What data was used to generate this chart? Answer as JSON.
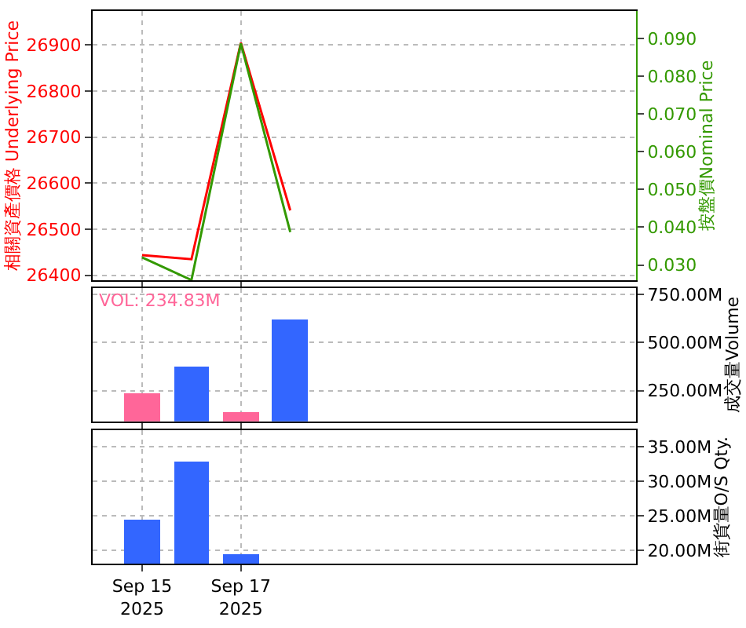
{
  "chart_data": [
    {
      "type": "line",
      "ylabel": "相關資產價格 Underlying Price",
      "y2label": "按盤價Nominal Price",
      "xlim": [
        "2025-09-14",
        "2025-09-25"
      ],
      "xticks": [
        {
          "value": "2025-09-15",
          "label": null
        },
        {
          "value": "2025-09-17",
          "label": null
        }
      ],
      "ylim": [
        26389,
        26974
      ],
      "yticks": [
        26400,
        26500,
        26600,
        26700,
        26800,
        26900
      ],
      "y2lim": [
        0.0259,
        0.0973
      ],
      "y2ticks": [
        {
          "value": 0.03,
          "label": "0.030"
        },
        {
          "value": 0.04,
          "label": "0.040"
        },
        {
          "value": 0.05,
          "label": "0.050"
        },
        {
          "value": 0.06,
          "label": "0.060"
        },
        {
          "value": 0.07,
          "label": "0.070"
        },
        {
          "value": 0.08,
          "label": "0.080"
        },
        {
          "value": 0.09,
          "label": "0.090"
        }
      ],
      "grid": true,
      "tick_labels": "y",
      "series": [
        {
          "color": "#ff0000",
          "x": [
            "2025-09-15",
            "2025-09-16",
            "2025-09-17",
            "2025-09-18"
          ],
          "values": [
            26444,
            26435,
            26905,
            26541
          ]
        },
        {
          "color": "#339900",
          "axis": "y2",
          "x": [
            "2025-09-15",
            "2025-09-16",
            "2025-09-17",
            "2025-09-18"
          ],
          "values": [
            0.032,
            0.026,
            0.0887,
            0.0387
          ]
        }
      ]
    },
    {
      "type": "bar",
      "ylabel": "成交量Volume",
      "annotations": [
        "VOL: 234.83M"
      ],
      "x": [
        "2025-09-15",
        "2025-09-16",
        "2025-09-17",
        "2025-09-18"
      ],
      "values": [
        234.83,
        377,
        139,
        624
      ],
      "colors": [
        "#ff6699",
        "#3366ff",
        "#ff6699",
        "#3366ff"
      ],
      "xlim": [
        "2025-09-14",
        "2025-09-25"
      ],
      "xticks": [
        {
          "value": "2025-09-15",
          "label": null
        },
        {
          "value": "2025-09-17",
          "label": null
        }
      ],
      "ylim": [
        91,
        784
      ],
      "yticks": [
        {
          "value": 250,
          "label": "250.00M"
        },
        {
          "value": 500,
          "label": "500.00M"
        },
        {
          "value": 750,
          "label": "750.00M"
        }
      ],
      "grid": true,
      "tick_labels": "y"
    },
    {
      "type": "bar",
      "ylabel": "街貨量O/S Qty.",
      "x": [
        "2025-09-15",
        "2025-09-16",
        "2025-09-17"
      ],
      "values": [
        24.5,
        32.9,
        19.4
      ],
      "colors": [
        "#3366ff",
        "#3366ff",
        "#3366ff"
      ],
      "xlim": [
        "2025-09-14",
        "2025-09-25"
      ],
      "xticks": [
        {
          "value": "2025-09-15",
          "label": "Sep 15\n2025"
        },
        {
          "value": "2025-09-17",
          "label": "Sep 17\n2025"
        }
      ],
      "ylim": [
        18.1,
        37.35
      ],
      "yticks": [
        {
          "value": 20,
          "label": "20.00M"
        },
        {
          "value": 25,
          "label": "25.00M"
        },
        {
          "value": 30,
          "label": "30.00M"
        },
        {
          "value": 35,
          "label": "35.00M"
        }
      ],
      "grid": true
    }
  ]
}
